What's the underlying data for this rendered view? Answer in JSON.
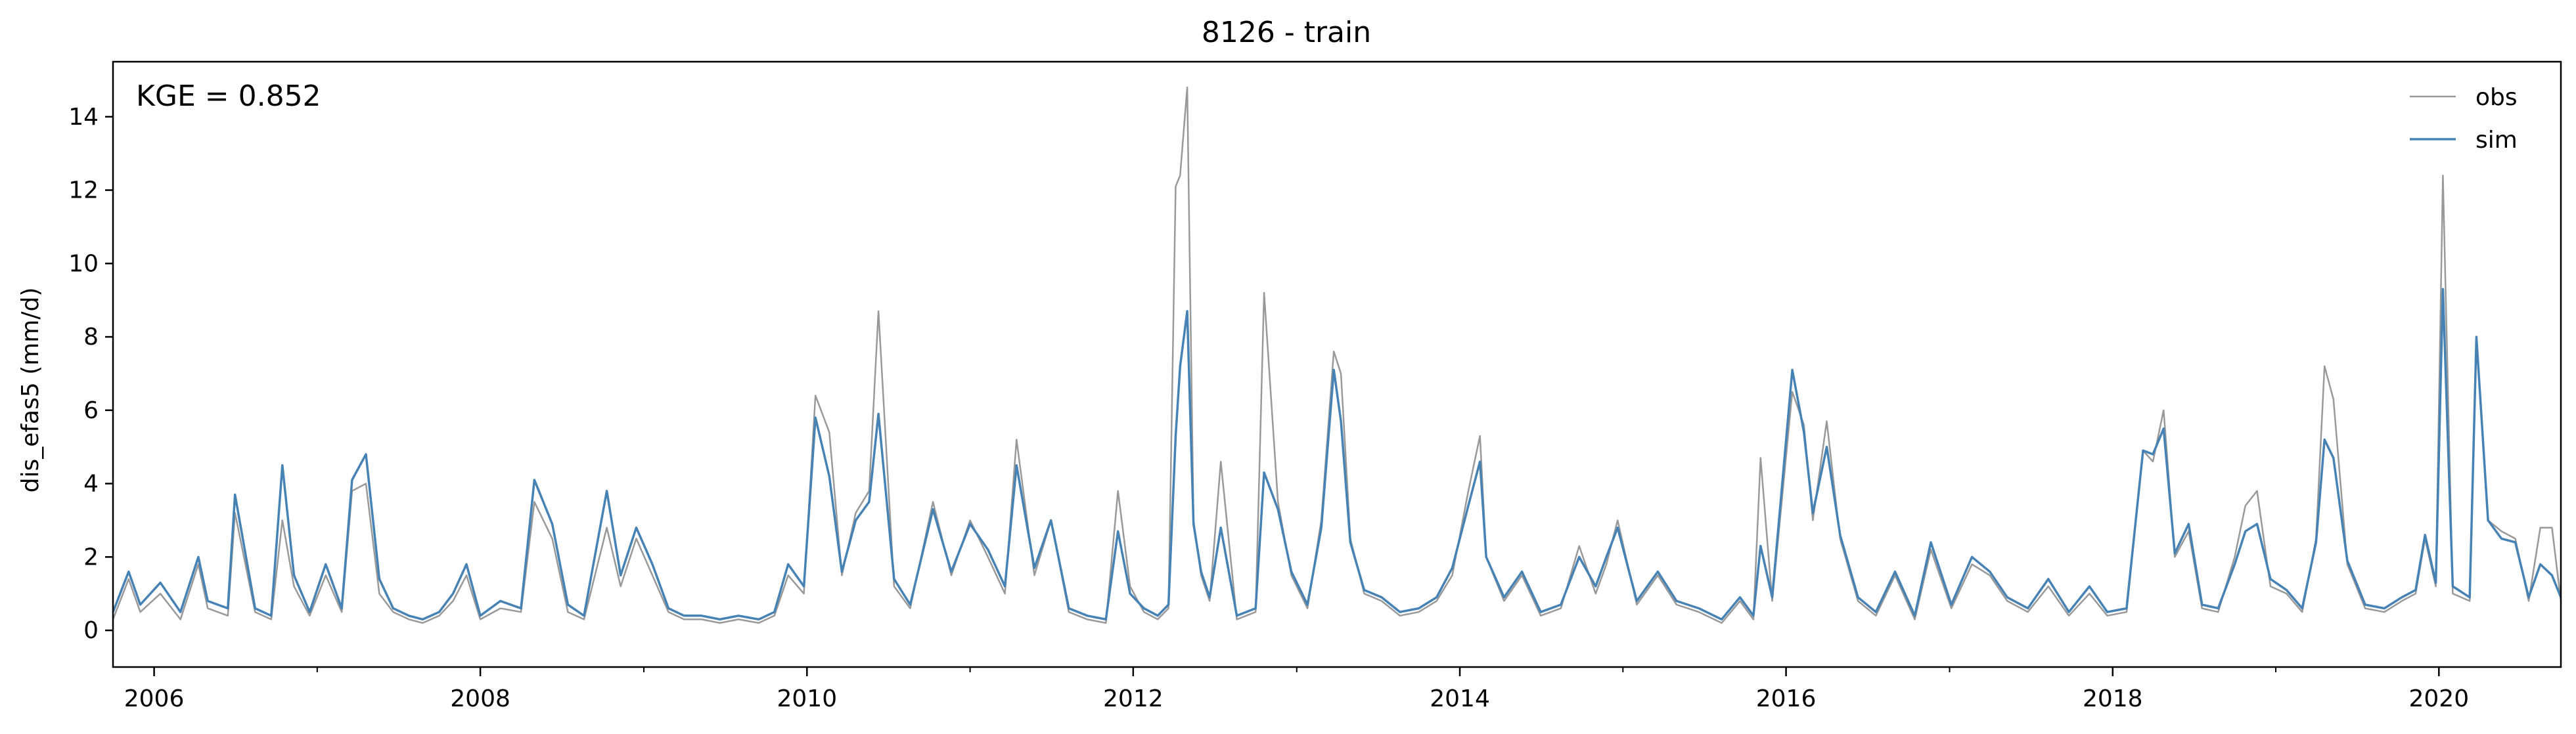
{
  "chart_data": {
    "type": "line",
    "title": "8126 - train",
    "xlabel": "",
    "ylabel": "dis_efas5 (mm/d)",
    "xlim": [
      "2005-10-01",
      "2020-09-30"
    ],
    "ylim": [
      -1,
      15.5
    ],
    "x_ticks": [
      "2006",
      "2008",
      "2010",
      "2012",
      "2014",
      "2016",
      "2018",
      "2020"
    ],
    "y_ticks": [
      0,
      2,
      4,
      6,
      8,
      10,
      12,
      14
    ],
    "grid": false,
    "legend": "top-right",
    "annotation": "KGE = 0.852",
    "series": [
      {
        "name": "obs",
        "color": "#999999",
        "x": [
          "2005-10-01",
          "2005-11-05",
          "2005-12-01",
          "2006-01-15",
          "2006-03-01",
          "2006-04-10",
          "2006-05-01",
          "2006-06-15",
          "2006-07-01",
          "2006-08-15",
          "2006-09-20",
          "2006-10-15",
          "2006-11-10",
          "2006-12-15",
          "2007-01-20",
          "2007-02-25",
          "2007-03-20",
          "2007-04-20",
          "2007-05-20",
          "2007-06-20",
          "2007-07-25",
          "2007-08-25",
          "2007-10-01",
          "2007-11-01",
          "2007-12-01",
          "2008-01-01",
          "2008-02-15",
          "2008-04-01",
          "2008-05-01",
          "2008-06-10",
          "2008-07-15",
          "2008-08-20",
          "2008-10-10",
          "2008-11-10",
          "2008-12-15",
          "2009-01-20",
          "2009-02-25",
          "2009-04-01",
          "2009-05-10",
          "2009-06-20",
          "2009-08-01",
          "2009-09-15",
          "2009-10-20",
          "2009-11-20",
          "2009-12-25",
          "2010-01-20",
          "2010-02-20",
          "2010-03-20",
          "2010-04-20",
          "2010-05-20",
          "2010-06-10",
          "2010-07-15",
          "2010-08-20",
          "2010-10-10",
          "2010-11-20",
          "2011-01-01",
          "2011-02-10",
          "2011-03-20",
          "2011-04-15",
          "2011-05-25",
          "2011-07-01",
          "2011-08-10",
          "2011-09-20",
          "2011-11-01",
          "2011-11-28",
          "2011-12-25",
          "2012-01-25",
          "2012-02-25",
          "2012-03-20",
          "2012-04-05",
          "2012-04-15",
          "2012-05-01",
          "2012-05-15",
          "2012-06-01",
          "2012-06-20",
          "2012-07-15",
          "2012-08-20",
          "2012-10-01",
          "2012-10-20",
          "2012-11-20",
          "2012-12-20",
          "2013-01-25",
          "2013-02-25",
          "2013-03-25",
          "2013-04-10",
          "2013-05-01",
          "2013-06-01",
          "2013-07-10",
          "2013-08-20",
          "2013-10-01",
          "2013-11-10",
          "2013-12-15",
          "2014-01-20",
          "2014-02-15",
          "2014-03-01",
          "2014-04-10",
          "2014-05-20",
          "2014-07-01",
          "2014-08-15",
          "2014-09-25",
          "2014-11-01",
          "2014-11-25",
          "2014-12-20",
          "2015-02-01",
          "2015-03-20",
          "2015-05-01",
          "2015-06-20",
          "2015-08-10",
          "2015-09-20",
          "2015-10-20",
          "2015-11-05",
          "2015-12-01",
          "2016-01-15",
          "2016-02-10",
          "2016-03-01",
          "2016-04-01",
          "2016-05-01",
          "2016-06-10",
          "2016-07-20",
          "2016-09-01",
          "2016-10-15",
          "2016-11-20",
          "2017-01-05",
          "2017-02-20",
          "2017-04-01",
          "2017-05-10",
          "2017-06-25",
          "2017-08-10",
          "2017-09-25",
          "2017-11-10",
          "2017-12-20",
          "2018-02-01",
          "2018-03-10",
          "2018-04-01",
          "2018-04-25",
          "2018-05-20",
          "2018-06-20",
          "2018-07-20",
          "2018-08-25",
          "2018-10-01",
          "2018-10-25",
          "2018-11-20",
          "2018-12-20",
          "2019-01-25",
          "2019-03-01",
          "2019-04-01",
          "2019-04-20",
          "2019-05-10",
          "2019-06-10",
          "2019-07-20",
          "2019-09-01",
          "2019-10-10",
          "2019-11-10",
          "2019-12-01",
          "2019-12-25",
          "2020-01-10",
          "2020-02-01",
          "2020-03-10",
          "2020-03-25",
          "2020-04-20",
          "2020-05-20",
          "2020-06-20",
          "2020-07-20",
          "2020-08-15",
          "2020-09-10",
          "2020-09-30"
        ],
        "y": [
          0.3,
          1.4,
          0.5,
          1.0,
          0.3,
          1.8,
          0.6,
          0.4,
          3.2,
          0.5,
          0.3,
          3.0,
          1.2,
          0.4,
          1.5,
          0.5,
          3.8,
          4.0,
          1.0,
          0.5,
          0.3,
          0.2,
          0.4,
          0.8,
          1.5,
          0.3,
          0.6,
          0.5,
          3.5,
          2.5,
          0.5,
          0.3,
          2.8,
          1.2,
          2.5,
          1.5,
          0.5,
          0.3,
          0.3,
          0.2,
          0.3,
          0.2,
          0.4,
          1.5,
          1.0,
          6.4,
          5.4,
          1.5,
          3.2,
          3.8,
          8.7,
          1.2,
          0.6,
          3.5,
          1.5,
          3.0,
          2.0,
          1.0,
          5.2,
          1.5,
          3.0,
          0.5,
          0.3,
          0.2,
          3.8,
          1.2,
          0.5,
          0.3,
          0.6,
          12.1,
          12.4,
          14.8,
          3.0,
          1.5,
          0.8,
          4.6,
          0.3,
          0.5,
          9.2,
          3.5,
          1.5,
          0.6,
          3.0,
          7.6,
          7.0,
          2.5,
          1.0,
          0.8,
          0.4,
          0.5,
          0.8,
          1.5,
          3.8,
          5.3,
          2.0,
          0.8,
          1.5,
          0.4,
          0.6,
          2.3,
          1.0,
          1.8,
          3.0,
          0.7,
          1.5,
          0.7,
          0.5,
          0.2,
          0.8,
          0.3,
          4.7,
          0.8,
          6.5,
          5.6,
          3.0,
          5.7,
          2.5,
          0.8,
          0.4,
          1.5,
          0.3,
          2.2,
          0.6,
          1.8,
          1.5,
          0.8,
          0.5,
          1.2,
          0.4,
          1.0,
          0.4,
          0.5,
          4.9,
          4.6,
          6.0,
          2.0,
          2.7,
          0.6,
          0.5,
          2.0,
          3.4,
          3.8,
          1.2,
          1.0,
          0.5,
          2.5,
          7.2,
          6.3,
          1.8,
          0.6,
          0.5,
          0.8,
          1.0,
          2.5,
          1.2,
          12.4,
          1.0,
          0.8,
          8.0,
          3.0,
          2.7,
          2.5,
          0.8,
          2.8,
          2.8,
          0.8
        ]
      },
      {
        "name": "sim",
        "color": "#4682b4",
        "x": [
          "2005-10-01",
          "2005-11-05",
          "2005-12-01",
          "2006-01-15",
          "2006-03-01",
          "2006-04-10",
          "2006-05-01",
          "2006-06-15",
          "2006-07-01",
          "2006-08-15",
          "2006-09-20",
          "2006-10-15",
          "2006-11-10",
          "2006-12-15",
          "2007-01-20",
          "2007-02-25",
          "2007-03-20",
          "2007-04-20",
          "2007-05-20",
          "2007-06-20",
          "2007-07-25",
          "2007-08-25",
          "2007-10-01",
          "2007-11-01",
          "2007-12-01",
          "2008-01-01",
          "2008-02-15",
          "2008-04-01",
          "2008-05-01",
          "2008-06-10",
          "2008-07-15",
          "2008-08-20",
          "2008-10-10",
          "2008-11-10",
          "2008-12-15",
          "2009-01-20",
          "2009-02-25",
          "2009-04-01",
          "2009-05-10",
          "2009-06-20",
          "2009-08-01",
          "2009-09-15",
          "2009-10-20",
          "2009-11-20",
          "2009-12-25",
          "2010-01-20",
          "2010-02-20",
          "2010-03-20",
          "2010-04-20",
          "2010-05-20",
          "2010-06-10",
          "2010-07-15",
          "2010-08-20",
          "2010-10-10",
          "2010-11-20",
          "2011-01-01",
          "2011-02-10",
          "2011-03-20",
          "2011-04-15",
          "2011-05-25",
          "2011-07-01",
          "2011-08-10",
          "2011-09-20",
          "2011-11-01",
          "2011-11-28",
          "2011-12-25",
          "2012-01-25",
          "2012-02-25",
          "2012-03-20",
          "2012-04-05",
          "2012-04-15",
          "2012-05-01",
          "2012-05-15",
          "2012-06-01",
          "2012-06-20",
          "2012-07-15",
          "2012-08-20",
          "2012-10-01",
          "2012-10-20",
          "2012-11-20",
          "2012-12-20",
          "2013-01-25",
          "2013-02-25",
          "2013-03-25",
          "2013-04-10",
          "2013-05-01",
          "2013-06-01",
          "2013-07-10",
          "2013-08-20",
          "2013-10-01",
          "2013-11-10",
          "2013-12-15",
          "2014-01-20",
          "2014-02-15",
          "2014-03-01",
          "2014-04-10",
          "2014-05-20",
          "2014-07-01",
          "2014-08-15",
          "2014-09-25",
          "2014-11-01",
          "2014-11-25",
          "2014-12-20",
          "2015-02-01",
          "2015-03-20",
          "2015-05-01",
          "2015-06-20",
          "2015-08-10",
          "2015-09-20",
          "2015-10-20",
          "2015-11-05",
          "2015-12-01",
          "2016-01-15",
          "2016-02-10",
          "2016-03-01",
          "2016-04-01",
          "2016-05-01",
          "2016-06-10",
          "2016-07-20",
          "2016-09-01",
          "2016-10-15",
          "2016-11-20",
          "2017-01-05",
          "2017-02-20",
          "2017-04-01",
          "2017-05-10",
          "2017-06-25",
          "2017-08-10",
          "2017-09-25",
          "2017-11-10",
          "2017-12-20",
          "2018-02-01",
          "2018-03-10",
          "2018-04-01",
          "2018-04-25",
          "2018-05-20",
          "2018-06-20",
          "2018-07-20",
          "2018-08-25",
          "2018-10-01",
          "2018-10-25",
          "2018-11-20",
          "2018-12-20",
          "2019-01-25",
          "2019-03-01",
          "2019-04-01",
          "2019-04-20",
          "2019-05-10",
          "2019-06-10",
          "2019-07-20",
          "2019-09-01",
          "2019-10-10",
          "2019-11-10",
          "2019-12-01",
          "2019-12-25",
          "2020-01-10",
          "2020-02-01",
          "2020-03-10",
          "2020-03-25",
          "2020-04-20",
          "2020-05-20",
          "2020-06-20",
          "2020-07-20",
          "2020-08-15",
          "2020-09-10",
          "2020-09-30"
        ],
        "y": [
          0.5,
          1.6,
          0.7,
          1.3,
          0.5,
          2.0,
          0.8,
          0.6,
          3.7,
          0.6,
          0.4,
          4.5,
          1.5,
          0.5,
          1.8,
          0.6,
          4.1,
          4.8,
          1.4,
          0.6,
          0.4,
          0.3,
          0.5,
          1.0,
          1.8,
          0.4,
          0.8,
          0.6,
          4.1,
          2.9,
          0.7,
          0.4,
          3.8,
          1.5,
          2.8,
          1.8,
          0.6,
          0.4,
          0.4,
          0.3,
          0.4,
          0.3,
          0.5,
          1.8,
          1.2,
          5.8,
          4.2,
          1.6,
          3.0,
          3.5,
          5.9,
          1.4,
          0.7,
          3.3,
          1.6,
          2.9,
          2.2,
          1.2,
          4.5,
          1.7,
          3.0,
          0.6,
          0.4,
          0.3,
          2.7,
          1.0,
          0.6,
          0.4,
          0.7,
          5.3,
          7.2,
          8.7,
          2.9,
          1.6,
          0.9,
          2.8,
          0.4,
          0.6,
          4.3,
          3.3,
          1.6,
          0.7,
          2.8,
          7.1,
          5.7,
          2.4,
          1.1,
          0.9,
          0.5,
          0.6,
          0.9,
          1.7,
          3.4,
          4.6,
          2.0,
          0.9,
          1.6,
          0.5,
          0.7,
          2.0,
          1.2,
          2.0,
          2.8,
          0.8,
          1.6,
          0.8,
          0.6,
          0.3,
          0.9,
          0.4,
          2.3,
          0.9,
          7.1,
          5.4,
          3.2,
          5.0,
          2.6,
          0.9,
          0.5,
          1.6,
          0.4,
          2.4,
          0.7,
          2.0,
          1.6,
          0.9,
          0.6,
          1.4,
          0.5,
          1.2,
          0.5,
          0.6,
          4.9,
          4.8,
          5.5,
          2.1,
          2.9,
          0.7,
          0.6,
          1.8,
          2.7,
          2.9,
          1.4,
          1.1,
          0.6,
          2.4,
          5.2,
          4.7,
          1.9,
          0.7,
          0.6,
          0.9,
          1.1,
          2.6,
          1.3,
          9.3,
          1.2,
          0.9,
          8.0,
          3.0,
          2.5,
          2.4,
          0.9,
          1.8,
          1.5,
          0.9
        ]
      }
    ]
  }
}
